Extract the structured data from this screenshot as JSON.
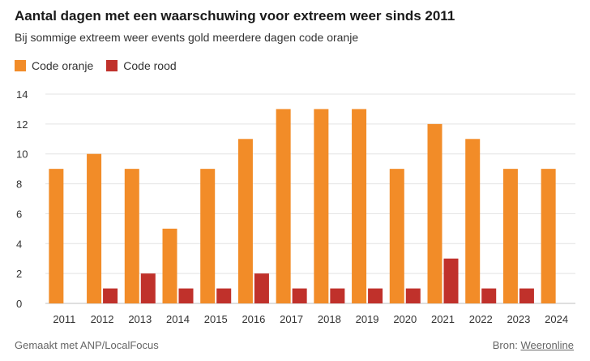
{
  "header": {
    "title": "Aantal dagen met een waarschuwing voor extreem weer sinds 2011",
    "subtitle": "Bij sommige extreem weer events gold meerdere dagen code oranje"
  },
  "legend": [
    {
      "label": "Code oranje",
      "color": "#F28C28"
    },
    {
      "label": "Code rood",
      "color": "#C0312B"
    }
  ],
  "footer": {
    "made_with": "Gemaakt met ANP/LocalFocus",
    "source_prefix": "Bron:",
    "source_link": "Weeronline"
  },
  "chart_data": {
    "type": "bar",
    "categories": [
      "2011",
      "2012",
      "2013",
      "2014",
      "2015",
      "2016",
      "2017",
      "2018",
      "2019",
      "2020",
      "2021",
      "2022",
      "2023",
      "2024"
    ],
    "series": [
      {
        "name": "Code oranje",
        "color": "#F28C28",
        "values": [
          9,
          10,
          9,
          5,
          9,
          11,
          13,
          13,
          13,
          9,
          12,
          11,
          9,
          9
        ]
      },
      {
        "name": "Code rood",
        "color": "#C0312B",
        "values": [
          0,
          1,
          2,
          1,
          1,
          2,
          1,
          1,
          1,
          1,
          3,
          1,
          1,
          0
        ]
      }
    ],
    "yticks": [
      0,
      2,
      4,
      6,
      8,
      10,
      12,
      14
    ],
    "ylim": [
      0,
      14
    ],
    "grid": true,
    "legend_position": "top-left",
    "xlabel": "",
    "ylabel": ""
  }
}
